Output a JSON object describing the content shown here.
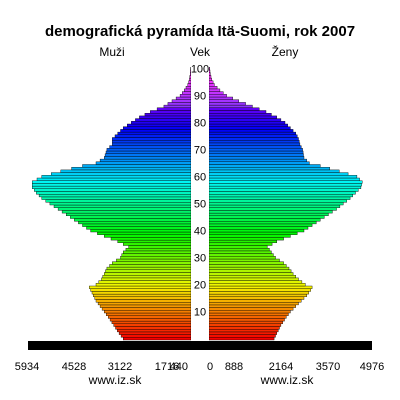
{
  "chart_data": {
    "type": "bar",
    "title": "demografická pyramída Itä-Suomi, rok 2007",
    "left_label": "Muži",
    "center_label": "Vek",
    "right_label": "Ženy",
    "series": [
      {
        "name": "Muži"
      },
      {
        "name": "Ženy"
      }
    ],
    "age_max": 100,
    "age_ticks": [
      10,
      20,
      30,
      40,
      50,
      60,
      70,
      80,
      90,
      100
    ],
    "x_ticks_left": [
      "5934",
      "4528",
      "3122",
      "1716",
      "440"
    ],
    "x_ticks_right": [
      "0",
      "888",
      "2164",
      "3570",
      "4976"
    ],
    "xlim": [
      0,
      5934
    ],
    "source_left": "www.iz.sk",
    "source_right": "www.iz.sk",
    "male_anchors": [
      [
        0,
        2500
      ],
      [
        2,
        2650
      ],
      [
        5,
        2850
      ],
      [
        8,
        3050
      ],
      [
        10,
        3200
      ],
      [
        12,
        3350
      ],
      [
        14,
        3500
      ],
      [
        16,
        3600
      ],
      [
        18,
        3700
      ],
      [
        19,
        3750
      ],
      [
        20,
        3500
      ],
      [
        22,
        3300
      ],
      [
        24,
        3200
      ],
      [
        26,
        3100
      ],
      [
        28,
        2900
      ],
      [
        30,
        2600
      ],
      [
        32,
        2500
      ],
      [
        34,
        2300
      ],
      [
        36,
        2700
      ],
      [
        38,
        3200
      ],
      [
        40,
        3700
      ],
      [
        42,
        4000
      ],
      [
        44,
        4300
      ],
      [
        46,
        4600
      ],
      [
        48,
        4900
      ],
      [
        50,
        5200
      ],
      [
        52,
        5500
      ],
      [
        54,
        5700
      ],
      [
        56,
        5850
      ],
      [
        58,
        5850
      ],
      [
        60,
        5500
      ],
      [
        62,
        4800
      ],
      [
        64,
        4000
      ],
      [
        65,
        3500
      ],
      [
        67,
        3200
      ],
      [
        70,
        3100
      ],
      [
        72,
        2900
      ],
      [
        74,
        2900
      ],
      [
        76,
        2700
      ],
      [
        78,
        2500
      ],
      [
        80,
        2200
      ],
      [
        82,
        1900
      ],
      [
        84,
        1500
      ],
      [
        86,
        1000
      ],
      [
        88,
        700
      ],
      [
        90,
        400
      ],
      [
        92,
        250
      ],
      [
        94,
        120
      ],
      [
        96,
        60
      ],
      [
        98,
        30
      ],
      [
        100,
        15
      ]
    ],
    "female_anchors": [
      [
        0,
        2400
      ],
      [
        2,
        2500
      ],
      [
        5,
        2650
      ],
      [
        8,
        2850
      ],
      [
        10,
        3000
      ],
      [
        12,
        3200
      ],
      [
        14,
        3400
      ],
      [
        16,
        3600
      ],
      [
        18,
        3750
      ],
      [
        19,
        3800
      ],
      [
        20,
        3550
      ],
      [
        22,
        3300
      ],
      [
        24,
        3100
      ],
      [
        26,
        2950
      ],
      [
        28,
        2750
      ],
      [
        30,
        2450
      ],
      [
        32,
        2300
      ],
      [
        34,
        2150
      ],
      [
        36,
        2500
      ],
      [
        38,
        3000
      ],
      [
        40,
        3500
      ],
      [
        42,
        3800
      ],
      [
        44,
        4100
      ],
      [
        46,
        4400
      ],
      [
        48,
        4700
      ],
      [
        50,
        4950
      ],
      [
        52,
        5200
      ],
      [
        54,
        5400
      ],
      [
        56,
        5600
      ],
      [
        58,
        5650
      ],
      [
        60,
        5450
      ],
      [
        62,
        4800
      ],
      [
        64,
        4100
      ],
      [
        65,
        3700
      ],
      [
        67,
        3500
      ],
      [
        70,
        3450
      ],
      [
        72,
        3350
      ],
      [
        74,
        3300
      ],
      [
        76,
        3200
      ],
      [
        78,
        3000
      ],
      [
        80,
        2800
      ],
      [
        82,
        2500
      ],
      [
        84,
        2100
      ],
      [
        86,
        1600
      ],
      [
        88,
        1100
      ],
      [
        90,
        650
      ],
      [
        92,
        400
      ],
      [
        94,
        200
      ],
      [
        96,
        100
      ],
      [
        98,
        50
      ],
      [
        100,
        25
      ]
    ]
  }
}
